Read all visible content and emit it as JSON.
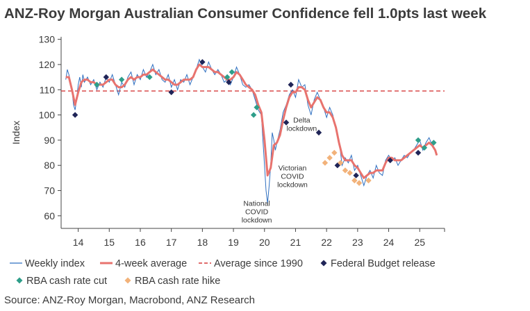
{
  "title": "ANZ-Roy Morgan Australian Consumer Confidence fell 1.0pts last week",
  "source": "Source: ANZ-Roy Morgan, Macrobond, ANZ Research",
  "colors": {
    "weekly": "#2e6fc0",
    "avg4": "#e8736e",
    "avg1990": "#d63a3a",
    "budget": "#1f2457",
    "cut": "#2e9e8a",
    "hike": "#f2b27a",
    "axis": "#444444"
  },
  "chart_data": {
    "type": "line",
    "ylabel": "Index",
    "ylim": [
      55,
      131
    ],
    "yticks": [
      60,
      70,
      80,
      90,
      100,
      110,
      120,
      130
    ],
    "xlim": [
      2013.45,
      2025.8
    ],
    "xticks": [
      2014,
      2015,
      2016,
      2017,
      2018,
      2019,
      2020,
      2021,
      2022,
      2023,
      2024,
      2025
    ],
    "xticklabels": [
      "14",
      "15",
      "16",
      "17",
      "18",
      "19",
      "20",
      "21",
      "22",
      "23",
      "24",
      "25"
    ],
    "average_since_1990": 109.5,
    "series": [
      {
        "name": "Weekly index",
        "style": "thin-line",
        "points": [
          [
            2013.6,
            114
          ],
          [
            2013.65,
            118
          ],
          [
            2013.7,
            116
          ],
          [
            2013.75,
            113
          ],
          [
            2013.8,
            110
          ],
          [
            2013.85,
            104
          ],
          [
            2013.9,
            102
          ],
          [
            2013.95,
            106
          ],
          [
            2014.0,
            112
          ],
          [
            2014.05,
            115
          ],
          [
            2014.1,
            111
          ],
          [
            2014.15,
            116
          ],
          [
            2014.2,
            113
          ],
          [
            2014.3,
            115
          ],
          [
            2014.4,
            112
          ],
          [
            2014.5,
            114
          ],
          [
            2014.6,
            110
          ],
          [
            2014.7,
            113
          ],
          [
            2014.8,
            111
          ],
          [
            2014.9,
            115
          ],
          [
            2015.0,
            113
          ],
          [
            2015.1,
            116
          ],
          [
            2015.2,
            112
          ],
          [
            2015.3,
            108
          ],
          [
            2015.4,
            113
          ],
          [
            2015.5,
            111
          ],
          [
            2015.6,
            115
          ],
          [
            2015.7,
            117
          ],
          [
            2015.8,
            112
          ],
          [
            2015.9,
            116
          ],
          [
            2016.0,
            114
          ],
          [
            2016.1,
            118
          ],
          [
            2016.2,
            115
          ],
          [
            2016.3,
            117
          ],
          [
            2016.4,
            120
          ],
          [
            2016.5,
            116
          ],
          [
            2016.6,
            118
          ],
          [
            2016.7,
            114
          ],
          [
            2016.8,
            113
          ],
          [
            2016.9,
            116
          ],
          [
            2017.0,
            111
          ],
          [
            2017.1,
            114
          ],
          [
            2017.2,
            110
          ],
          [
            2017.3,
            114
          ],
          [
            2017.4,
            113
          ],
          [
            2017.5,
            116
          ],
          [
            2017.6,
            112
          ],
          [
            2017.7,
            115
          ],
          [
            2017.8,
            118
          ],
          [
            2017.9,
            122
          ],
          [
            2018.0,
            119
          ],
          [
            2018.1,
            117
          ],
          [
            2018.2,
            121
          ],
          [
            2018.3,
            118
          ],
          [
            2018.4,
            116
          ],
          [
            2018.5,
            118
          ],
          [
            2018.6,
            116
          ],
          [
            2018.7,
            113
          ],
          [
            2018.8,
            114
          ],
          [
            2018.9,
            112
          ],
          [
            2019.0,
            115
          ],
          [
            2019.1,
            119
          ],
          [
            2019.2,
            116
          ],
          [
            2019.3,
            112
          ],
          [
            2019.4,
            111
          ],
          [
            2019.5,
            112
          ],
          [
            2019.6,
            110
          ],
          [
            2019.7,
            106
          ],
          [
            2019.8,
            102
          ],
          [
            2019.9,
            100
          ],
          [
            2019.95,
            90
          ],
          [
            2020.0,
            80
          ],
          [
            2020.05,
            70
          ],
          [
            2020.1,
            65
          ],
          [
            2020.15,
            72
          ],
          [
            2020.2,
            80
          ],
          [
            2020.25,
            93
          ],
          [
            2020.3,
            90
          ],
          [
            2020.35,
            86
          ],
          [
            2020.4,
            89
          ],
          [
            2020.5,
            94
          ],
          [
            2020.6,
            101
          ],
          [
            2020.7,
            104
          ],
          [
            2020.8,
            108
          ],
          [
            2020.9,
            110
          ],
          [
            2021.0,
            107
          ],
          [
            2021.1,
            114
          ],
          [
            2021.2,
            111
          ],
          [
            2021.3,
            112
          ],
          [
            2021.4,
            104
          ],
          [
            2021.5,
            100
          ],
          [
            2021.6,
            106
          ],
          [
            2021.7,
            109
          ],
          [
            2021.8,
            106
          ],
          [
            2021.9,
            103
          ],
          [
            2022.0,
            99
          ],
          [
            2022.1,
            103
          ],
          [
            2022.2,
            100
          ],
          [
            2022.3,
            95
          ],
          [
            2022.4,
            90
          ],
          [
            2022.45,
            85
          ],
          [
            2022.5,
            80
          ],
          [
            2022.6,
            83
          ],
          [
            2022.7,
            81
          ],
          [
            2022.8,
            84
          ],
          [
            2022.9,
            78
          ],
          [
            2023.0,
            80
          ],
          [
            2023.1,
            76
          ],
          [
            2023.2,
            72
          ],
          [
            2023.3,
            76
          ],
          [
            2023.4,
            78
          ],
          [
            2023.5,
            75
          ],
          [
            2023.6,
            80
          ],
          [
            2023.7,
            77
          ],
          [
            2023.8,
            76
          ],
          [
            2023.9,
            82
          ],
          [
            2024.0,
            84
          ],
          [
            2024.1,
            82
          ],
          [
            2024.2,
            83
          ],
          [
            2024.3,
            80
          ],
          [
            2024.4,
            82
          ],
          [
            2024.5,
            84
          ],
          [
            2024.6,
            83
          ],
          [
            2024.7,
            85
          ],
          [
            2024.8,
            86
          ],
          [
            2024.9,
            88
          ],
          [
            2025.0,
            90
          ],
          [
            2025.1,
            86
          ],
          [
            2025.2,
            89
          ],
          [
            2025.3,
            91
          ],
          [
            2025.4,
            88
          ],
          [
            2025.5,
            86
          ],
          [
            2025.55,
            84
          ]
        ]
      },
      {
        "name": "4-week average",
        "style": "thick-line",
        "points": [
          [
            2013.6,
            115
          ],
          [
            2013.7,
            115
          ],
          [
            2013.8,
            110
          ],
          [
            2013.9,
            104
          ],
          [
            2014.0,
            109
          ],
          [
            2014.1,
            113
          ],
          [
            2014.2,
            114
          ],
          [
            2014.3,
            114
          ],
          [
            2014.4,
            113
          ],
          [
            2014.5,
            113
          ],
          [
            2014.6,
            112
          ],
          [
            2014.7,
            112
          ],
          [
            2014.8,
            112
          ],
          [
            2014.9,
            113
          ],
          [
            2015.0,
            114
          ],
          [
            2015.1,
            114
          ],
          [
            2015.2,
            112
          ],
          [
            2015.3,
            111
          ],
          [
            2015.4,
            111
          ],
          [
            2015.5,
            112
          ],
          [
            2015.6,
            114
          ],
          [
            2015.7,
            115
          ],
          [
            2015.8,
            114
          ],
          [
            2015.9,
            115
          ],
          [
            2016.0,
            115
          ],
          [
            2016.1,
            116
          ],
          [
            2016.2,
            116
          ],
          [
            2016.3,
            117
          ],
          [
            2016.4,
            118
          ],
          [
            2016.5,
            117
          ],
          [
            2016.6,
            116
          ],
          [
            2016.7,
            115
          ],
          [
            2016.8,
            114
          ],
          [
            2016.9,
            114
          ],
          [
            2017.0,
            113
          ],
          [
            2017.1,
            112
          ],
          [
            2017.2,
            112
          ],
          [
            2017.3,
            113
          ],
          [
            2017.4,
            114
          ],
          [
            2017.5,
            114
          ],
          [
            2017.6,
            114
          ],
          [
            2017.7,
            115
          ],
          [
            2017.8,
            118
          ],
          [
            2017.9,
            120
          ],
          [
            2018.0,
            119
          ],
          [
            2018.1,
            119
          ],
          [
            2018.2,
            119
          ],
          [
            2018.3,
            118
          ],
          [
            2018.4,
            117
          ],
          [
            2018.5,
            117
          ],
          [
            2018.6,
            116
          ],
          [
            2018.7,
            115
          ],
          [
            2018.8,
            114
          ],
          [
            2018.9,
            114
          ],
          [
            2019.0,
            115
          ],
          [
            2019.1,
            117
          ],
          [
            2019.2,
            116
          ],
          [
            2019.3,
            114
          ],
          [
            2019.4,
            112
          ],
          [
            2019.5,
            111
          ],
          [
            2019.6,
            110
          ],
          [
            2019.7,
            108
          ],
          [
            2019.8,
            104
          ],
          [
            2019.9,
            101
          ],
          [
            2020.0,
            90
          ],
          [
            2020.1,
            76
          ],
          [
            2020.2,
            79
          ],
          [
            2020.3,
            88
          ],
          [
            2020.4,
            89
          ],
          [
            2020.5,
            92
          ],
          [
            2020.6,
            98
          ],
          [
            2020.7,
            103
          ],
          [
            2020.8,
            107
          ],
          [
            2020.9,
            109
          ],
          [
            2021.0,
            109
          ],
          [
            2021.1,
            111
          ],
          [
            2021.2,
            111
          ],
          [
            2021.3,
            110
          ],
          [
            2021.4,
            106
          ],
          [
            2021.5,
            103
          ],
          [
            2021.6,
            105
          ],
          [
            2021.7,
            107
          ],
          [
            2021.8,
            106
          ],
          [
            2021.9,
            103
          ],
          [
            2022.0,
            101
          ],
          [
            2022.1,
            101
          ],
          [
            2022.2,
            99
          ],
          [
            2022.3,
            95
          ],
          [
            2022.4,
            89
          ],
          [
            2022.5,
            84
          ],
          [
            2022.6,
            82
          ],
          [
            2022.7,
            82
          ],
          [
            2022.8,
            82
          ],
          [
            2022.9,
            80
          ],
          [
            2023.0,
            79
          ],
          [
            2023.1,
            77
          ],
          [
            2023.2,
            75
          ],
          [
            2023.3,
            76
          ],
          [
            2023.4,
            77
          ],
          [
            2023.5,
            77
          ],
          [
            2023.6,
            78
          ],
          [
            2023.7,
            78
          ],
          [
            2023.8,
            78
          ],
          [
            2023.9,
            81
          ],
          [
            2024.0,
            83
          ],
          [
            2024.1,
            83
          ],
          [
            2024.2,
            82
          ],
          [
            2024.3,
            82
          ],
          [
            2024.4,
            82
          ],
          [
            2024.5,
            83
          ],
          [
            2024.6,
            84
          ],
          [
            2024.7,
            85
          ],
          [
            2024.8,
            86
          ],
          [
            2024.9,
            87
          ],
          [
            2025.0,
            88
          ],
          [
            2025.1,
            87
          ],
          [
            2025.2,
            88
          ],
          [
            2025.3,
            89
          ],
          [
            2025.4,
            88
          ],
          [
            2025.5,
            86
          ],
          [
            2025.55,
            84
          ]
        ]
      }
    ],
    "markers": {
      "federal_budget": [
        [
          2013.9,
          100
        ],
        [
          2014.9,
          115
        ],
        [
          2017.0,
          109
        ],
        [
          2018.0,
          121
        ],
        [
          2018.85,
          113
        ],
        [
          2020.7,
          97
        ],
        [
          2020.85,
          112
        ],
        [
          2021.75,
          93
        ],
        [
          2022.35,
          80
        ],
        [
          2022.95,
          76
        ],
        [
          2024.05,
          82
        ],
        [
          2024.95,
          85
        ]
      ],
      "rba_cut": [
        [
          2014.6,
          112
        ],
        [
          2015.4,
          114
        ],
        [
          2016.3,
          115
        ],
        [
          2018.8,
          115
        ],
        [
          2018.95,
          117
        ],
        [
          2019.65,
          100
        ],
        [
          2019.75,
          103
        ],
        [
          2024.95,
          90
        ],
        [
          2025.15,
          87
        ],
        [
          2025.45,
          89
        ]
      ],
      "rba_hike": [
        [
          2021.95,
          81
        ],
        [
          2022.1,
          83
        ],
        [
          2022.25,
          85
        ],
        [
          2022.45,
          81
        ],
        [
          2022.6,
          78
        ],
        [
          2022.75,
          77
        ],
        [
          2022.9,
          74
        ],
        [
          2023.05,
          73
        ],
        [
          2023.35,
          74
        ]
      ]
    },
    "annotations": [
      {
        "lines": [
          "National",
          "COVID",
          "lockdown"
        ],
        "x": 2019.75,
        "y": 64
      },
      {
        "lines": [
          "Victorian",
          "COVID",
          "lockdown"
        ],
        "x": 2020.9,
        "y": 78
      },
      {
        "lines": [
          "Delta",
          "lockdown"
        ],
        "x": 2021.2,
        "y": 97
      }
    ],
    "legend": {
      "placement": "bottom",
      "row1": [
        {
          "key": "weekly",
          "label": "Weekly index"
        },
        {
          "key": "avg4",
          "label": "4-week average"
        },
        {
          "key": "avg1990",
          "label": "Average since 1990"
        },
        {
          "key": "budget",
          "label": "Federal Budget release"
        }
      ],
      "row2": [
        {
          "key": "cut",
          "label": "RBA cash rate cut"
        },
        {
          "key": "hike",
          "label": "RBA cash rate hike"
        }
      ]
    }
  }
}
